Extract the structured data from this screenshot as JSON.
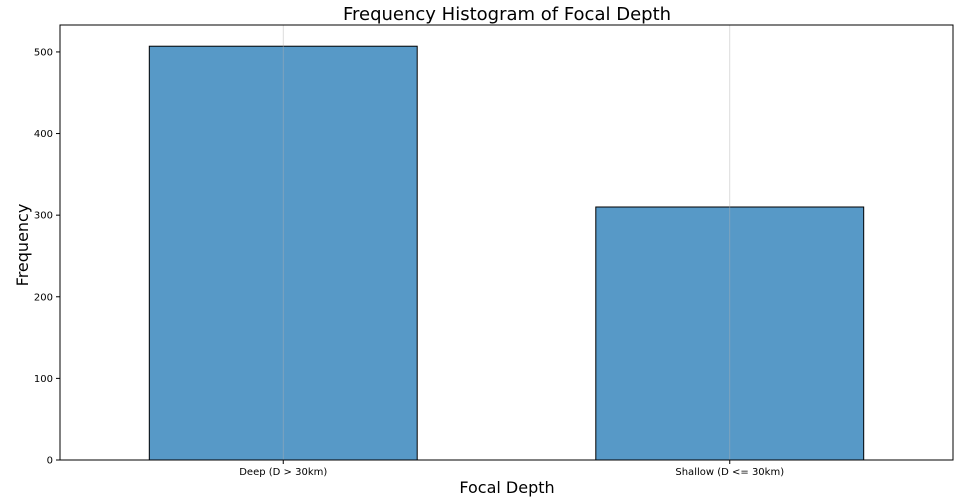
{
  "chart_data": {
    "type": "bar",
    "title": "Frequency Histogram of Focal Depth",
    "xlabel": "Focal Depth",
    "ylabel": "Frequency",
    "categories": [
      "Deep (D > 30km)",
      "Shallow (D <= 30km)"
    ],
    "values": [
      507,
      310
    ],
    "ylim": [
      0,
      533
    ],
    "yticks": [
      0,
      100,
      200,
      300,
      400,
      500
    ],
    "grid": "vertical",
    "bar_color": "#5799c7",
    "bar_edge_color": "#000000"
  }
}
